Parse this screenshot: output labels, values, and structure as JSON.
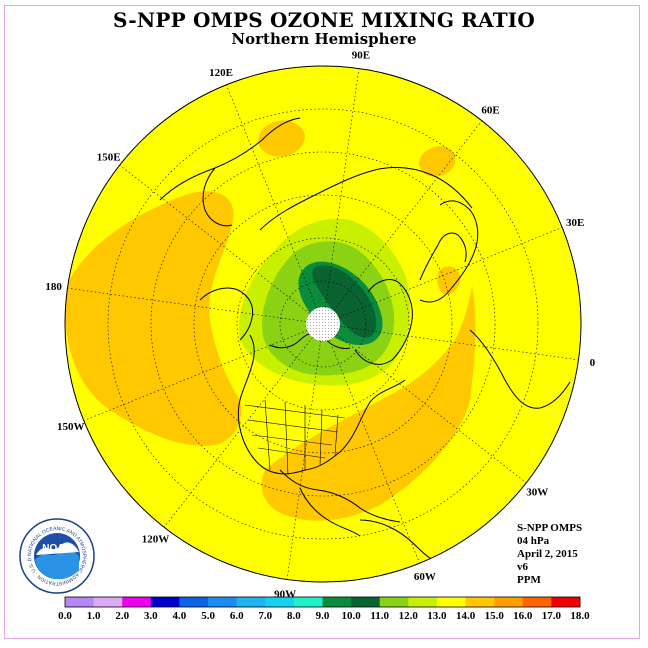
{
  "title": "S-NPP OMPS OZONE MIXING RATIO",
  "subtitle": "Northern Hemisphere",
  "info": {
    "instrument": "S-NPP OMPS",
    "level": "04 hPa",
    "date": "April 2, 2015",
    "version": "v6",
    "units": "PPM"
  },
  "longitude_labels": [
    {
      "text": "90E",
      "lon": 90
    },
    {
      "text": "60E",
      "lon": 60
    },
    {
      "text": "30E",
      "lon": 30
    },
    {
      "text": "0",
      "lon": 0
    },
    {
      "text": "30W",
      "lon": -30
    },
    {
      "text": "60W",
      "lon": -60
    },
    {
      "text": "90W",
      "lon": -90
    },
    {
      "text": "120W",
      "lon": -120
    },
    {
      "text": "150W",
      "lon": -150
    },
    {
      "text": "180",
      "lon": 180
    },
    {
      "text": "150E",
      "lon": 150
    },
    {
      "text": "120E",
      "lon": 120
    }
  ],
  "colorbar": {
    "labels": [
      "0.0",
      "1.0",
      "2.0",
      "3.0",
      "4.0",
      "5.0",
      "6.0",
      "7.0",
      "8.0",
      "9.0",
      "10.0",
      "11.0",
      "12.0",
      "13.0",
      "14.0",
      "15.0",
      "16.0",
      "17.0",
      "18.0"
    ],
    "colors": [
      "#b987f5",
      "#dcaaf5",
      "#f000f0",
      "#0000cd",
      "#0a64e6",
      "#1e8cf0",
      "#1eb4f0",
      "#14d2f0",
      "#1ef0c8",
      "#0a8c3c",
      "#0a6432",
      "#8cd214",
      "#c8f000",
      "#ffff00",
      "#ffc800",
      "#ffa000",
      "#ff6400",
      "#f00000",
      "#8b5a3c"
    ]
  },
  "colors": {
    "ocean_background": "#ffff00",
    "moderate_high": "#ffc800",
    "low_green": "#c8f000",
    "green": "#8cd214",
    "dark_green": "#0a6432",
    "frame": "#e2a6e2"
  },
  "logo": {
    "acronym": "NOAA",
    "ring_text": "NATIONAL OCEANIC AND ATMOSPHERIC ADMINISTRATION · U.S. DEPARTMENT OF COMMERCE"
  }
}
